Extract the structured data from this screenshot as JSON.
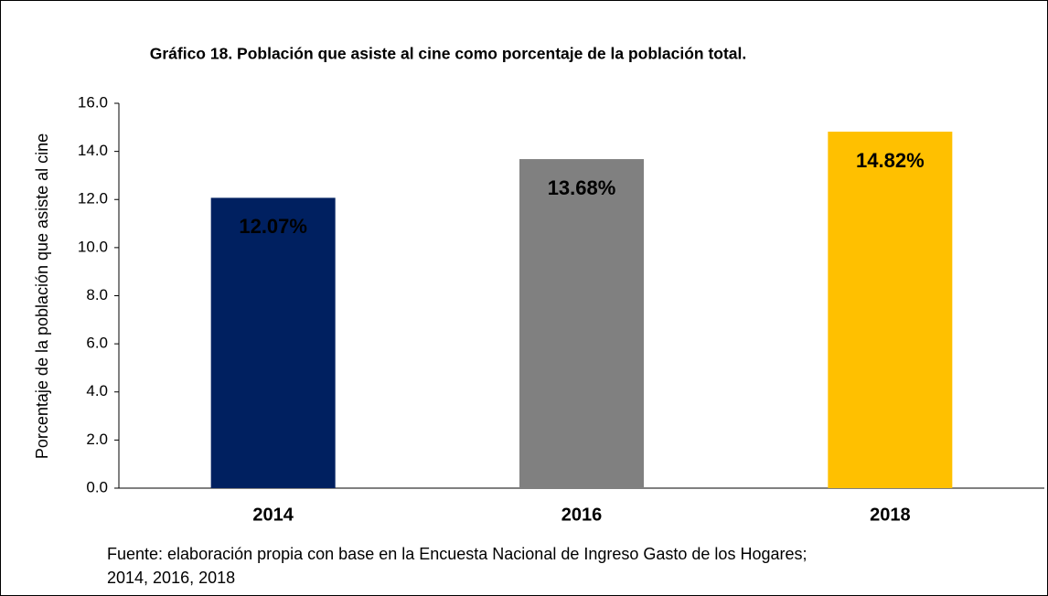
{
  "chart_data": {
    "type": "bar",
    "title": "Gráfico 18. Población que asiste al cine como porcentaje de la población total.",
    "y_axis_label": "Porcentaje de la población que asiste al cine",
    "categories": [
      "2014",
      "2016",
      "2018"
    ],
    "values": [
      12.07,
      13.68,
      14.82
    ],
    "value_labels": [
      "12.07%",
      "13.68%",
      "14.82%"
    ],
    "colors": [
      "#002060",
      "#808080",
      "#ffc000"
    ],
    "value_label_colors": [
      "#ffffff",
      "#ffffff",
      "#1a1a1a"
    ],
    "ylim": [
      0,
      16
    ],
    "yticks": [
      {
        "value": 0,
        "label": "0.0"
      },
      {
        "value": 2,
        "label": "2.0"
      },
      {
        "value": 4,
        "label": "4.0"
      },
      {
        "value": 6,
        "label": "6.0"
      },
      {
        "value": 8,
        "label": "8.0"
      },
      {
        "value": 10,
        "label": "10.0"
      },
      {
        "value": 12,
        "label": "12.0"
      },
      {
        "value": 14,
        "label": "14.0"
      },
      {
        "value": 16,
        "label": "16.0"
      }
    ],
    "grid": false,
    "source": [
      "Fuente: elaboración propia con base en la Encuesta Nacional de Ingreso Gasto de los Hogares;",
      "2014, 2016, 2018"
    ]
  }
}
